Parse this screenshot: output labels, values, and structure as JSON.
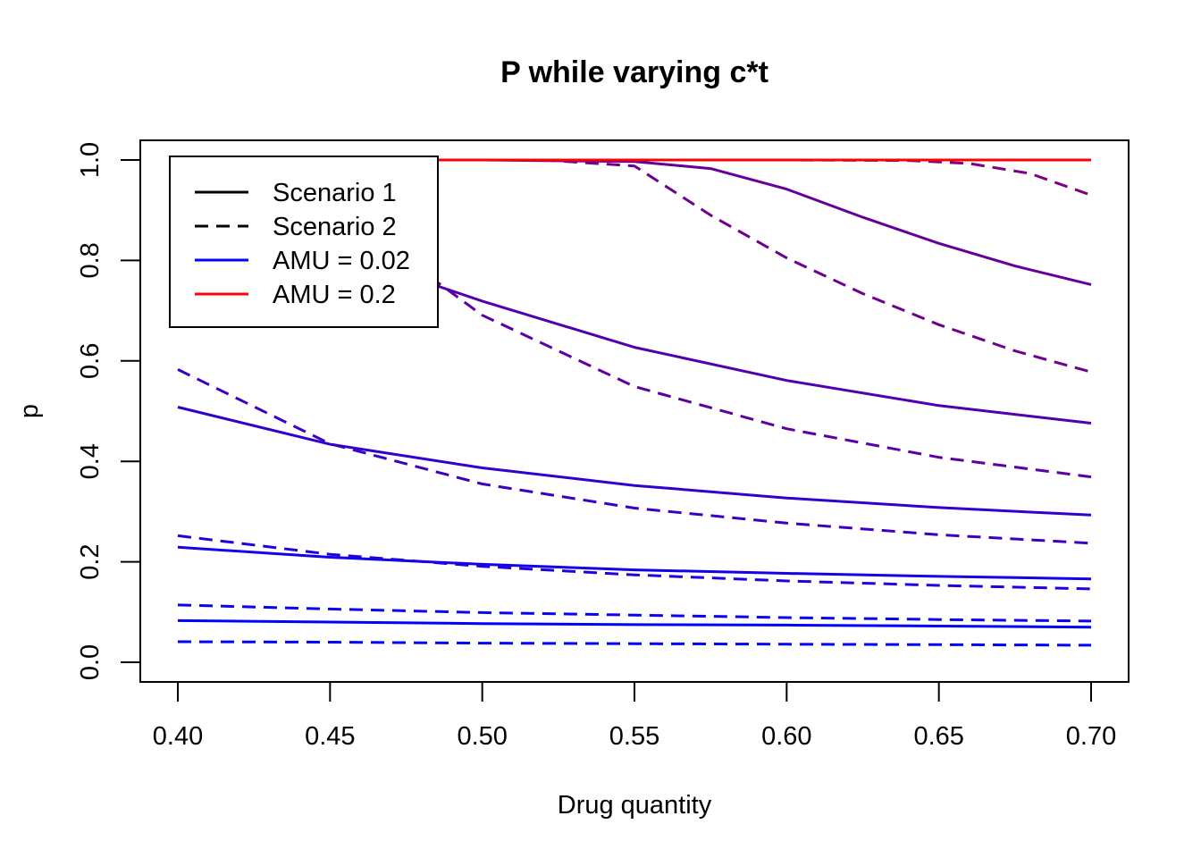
{
  "chart_data": {
    "type": "line",
    "title": "P while varying c*t",
    "xlabel": "Drug quantity",
    "ylabel": "p",
    "xlim": [
      0.4,
      0.7
    ],
    "ylim": [
      0.0,
      1.0
    ],
    "x_ticks": [
      0.4,
      0.45,
      0.5,
      0.55,
      0.6,
      0.65,
      0.7
    ],
    "x_tick_labels": [
      "0.40",
      "0.45",
      "0.50",
      "0.55",
      "0.60",
      "0.65",
      "0.70"
    ],
    "y_ticks": [
      0.0,
      0.2,
      0.4,
      0.6,
      0.8,
      1.0
    ],
    "y_tick_labels": [
      "0.0",
      "0.2",
      "0.4",
      "0.6",
      "0.8",
      "1.0"
    ],
    "grid": false,
    "legend_position": "top-left",
    "legend": [
      {
        "label": "Scenario 1",
        "color": "#000000",
        "dash": "solid"
      },
      {
        "label": "Scenario 2",
        "color": "#000000",
        "dash": "dashed"
      },
      {
        "label": "AMU = 0.02",
        "color": "#0000FF",
        "dash": "solid"
      },
      {
        "label": "AMU = 0.2",
        "color": "#FF0000",
        "dash": "solid"
      }
    ],
    "series": [
      {
        "color": "#0000FF",
        "dash": "solid",
        "x": [
          0.4,
          0.45,
          0.5,
          0.55,
          0.6,
          0.65,
          0.7
        ],
        "y": [
          0.083,
          0.08,
          0.077,
          0.075,
          0.074,
          0.072,
          0.07
        ]
      },
      {
        "color": "#0000FF",
        "dash": "dashed",
        "x": [
          0.4,
          0.45,
          0.5,
          0.55,
          0.6,
          0.65,
          0.7
        ],
        "y": [
          0.041,
          0.04,
          0.038,
          0.037,
          0.036,
          0.035,
          0.034
        ]
      },
      {
        "color": "#0A00F5",
        "dash": "dashed",
        "x": [
          0.4,
          0.45,
          0.5,
          0.55,
          0.6,
          0.65,
          0.7
        ],
        "y": [
          0.114,
          0.106,
          0.099,
          0.094,
          0.089,
          0.085,
          0.082
        ]
      },
      {
        "color": "#1500EA",
        "dash": "solid",
        "x": [
          0.4,
          0.45,
          0.5,
          0.55,
          0.6,
          0.65,
          0.7
        ],
        "y": [
          0.229,
          0.209,
          0.195,
          0.184,
          0.177,
          0.171,
          0.166
        ]
      },
      {
        "color": "#1E00E1",
        "dash": "dashed",
        "x": [
          0.4,
          0.45,
          0.5,
          0.55,
          0.6,
          0.65,
          0.7
        ],
        "y": [
          0.252,
          0.215,
          0.191,
          0.174,
          0.162,
          0.153,
          0.146
        ]
      },
      {
        "color": "#3000CF",
        "dash": "solid",
        "x": [
          0.4,
          0.45,
          0.5,
          0.55,
          0.6,
          0.65,
          0.7
        ],
        "y": [
          0.508,
          0.434,
          0.387,
          0.352,
          0.327,
          0.308,
          0.293
        ]
      },
      {
        "color": "#3C00C3",
        "dash": "dashed",
        "x": [
          0.4,
          0.45,
          0.5,
          0.55,
          0.6,
          0.65,
          0.7
        ],
        "y": [
          0.583,
          0.435,
          0.355,
          0.307,
          0.277,
          0.254,
          0.237
        ]
      },
      {
        "color": "#5000AF",
        "dash": "solid",
        "x": [
          0.4,
          0.48,
          0.5,
          0.55,
          0.6,
          0.65,
          0.7
        ],
        "y": [
          0.85,
          0.76,
          0.719,
          0.627,
          0.561,
          0.511,
          0.476
        ]
      },
      {
        "color": "#5A00A5",
        "dash": "dashed",
        "x": [
          0.4,
          0.48,
          0.5,
          0.55,
          0.6,
          0.65,
          0.7
        ],
        "y": [
          0.86,
          0.78,
          0.691,
          0.549,
          0.465,
          0.408,
          0.369
        ]
      },
      {
        "color": "#640099",
        "dash": "solid",
        "x": [
          0.4,
          0.5,
          0.55,
          0.575,
          0.6,
          0.625,
          0.65,
          0.675,
          0.7
        ],
        "y": [
          1.0,
          1.0,
          0.997,
          0.983,
          0.942,
          0.886,
          0.834,
          0.789,
          0.752
        ]
      },
      {
        "color": "#6E0090",
        "dash": "dashed",
        "x": [
          0.4,
          0.52,
          0.55,
          0.575,
          0.6,
          0.625,
          0.65,
          0.675,
          0.7
        ],
        "y": [
          1.0,
          1.0,
          0.988,
          0.89,
          0.805,
          0.734,
          0.672,
          0.62,
          0.578
        ]
      },
      {
        "color": "#800080",
        "dash": "dashed",
        "x": [
          0.4,
          0.6,
          0.64,
          0.66,
          0.68,
          0.7
        ],
        "y": [
          1.0,
          1.0,
          0.999,
          0.993,
          0.973,
          0.93
        ]
      },
      {
        "color": "#FF0000",
        "dash": "solid",
        "x": [
          0.4,
          0.7
        ],
        "y": [
          1.0,
          1.0
        ]
      }
    ]
  }
}
